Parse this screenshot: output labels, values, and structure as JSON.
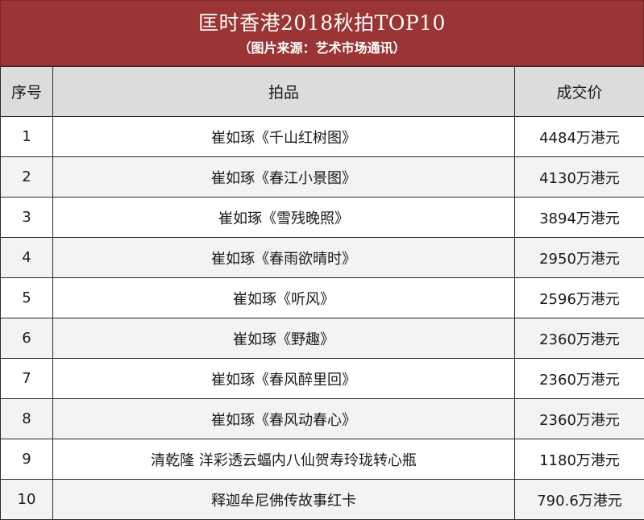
{
  "header": {
    "title": "匡时香港2018秋拍TOP10",
    "subtitle": "（图片来源：艺术市场通讯）",
    "background_color": "#9b3535"
  },
  "table": {
    "columns": [
      "序号",
      "拍品",
      "成交价"
    ],
    "rows": [
      {
        "no": "1",
        "item": "崔如琢《千山红树图》",
        "price": "4484万港元"
      },
      {
        "no": "2",
        "item": "崔如琢《春江小景图》",
        "price": "4130万港元"
      },
      {
        "no": "3",
        "item": "崔如琢《雪残晚照》",
        "price": "3894万港元"
      },
      {
        "no": "4",
        "item": "崔如琢《春雨欲晴时》",
        "price": "2950万港元"
      },
      {
        "no": "5",
        "item": "崔如琢《听风》",
        "price": "2596万港元"
      },
      {
        "no": "6",
        "item": "崔如琢《野趣》",
        "price": "2360万港元"
      },
      {
        "no": "7",
        "item": "崔如琢《春风醉里回》",
        "price": "2360万港元"
      },
      {
        "no": "8",
        "item": "崔如琢《春风动春心》",
        "price": "2360万港元"
      },
      {
        "no": "9",
        "item": "清乾隆  洋彩透云蝠内八仙贺寿玲珑转心瓶",
        "price": "1180万港元"
      },
      {
        "no": "10",
        "item": "释迦牟尼佛传故事红卡",
        "price": "790.6万港元"
      }
    ]
  }
}
